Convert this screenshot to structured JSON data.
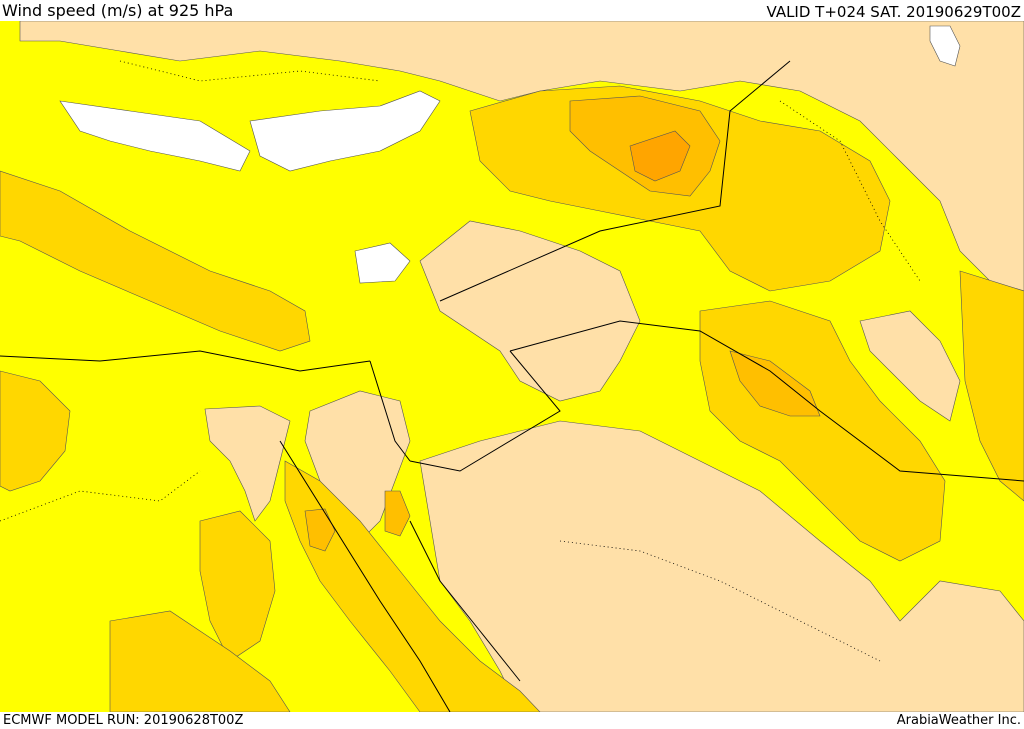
{
  "header": {
    "title": "Wind speed (m/s) at 925 hPa",
    "valid": "VALID T+024 SAT. 20190629T00Z"
  },
  "footer": {
    "model_run": "ECMWF MODEL RUN: 20190628T00Z",
    "credit": "ArabiaWeather Inc."
  },
  "map": {
    "variable": "wind speed",
    "level": "925 hPa",
    "colors": {
      "sea_calm": "#ffffff",
      "light_wind": "#ffe0a8",
      "moderate_wind": "#ffff00",
      "fresh_wind": "#ffd700",
      "strong_wind": "#ffbf00",
      "very_strong_wind": "#ffa500",
      "border": "#000000"
    }
  }
}
